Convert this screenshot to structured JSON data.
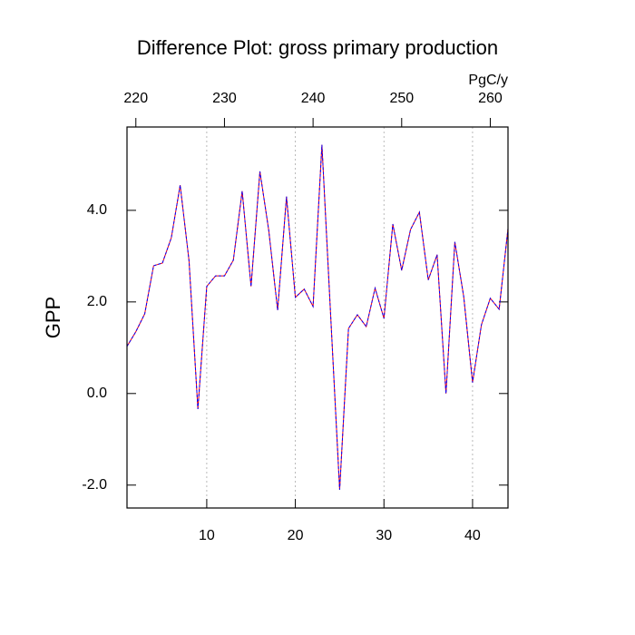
{
  "chart_data": {
    "type": "line",
    "title": "Difference Plot: gross primary production",
    "ylabel": "GPP",
    "x2label": "PgC/y",
    "x": [
      1,
      2,
      3,
      4,
      5,
      6,
      7,
      8,
      9,
      10,
      11,
      12,
      13,
      14,
      15,
      16,
      17,
      18,
      19,
      20,
      21,
      22,
      23,
      24,
      25,
      26,
      27,
      28,
      29,
      30,
      31,
      32,
      33,
      34,
      35,
      36,
      37,
      38,
      39,
      40,
      41,
      42,
      43,
      44
    ],
    "values": [
      1.03,
      1.35,
      1.74,
      2.79,
      2.85,
      3.4,
      4.55,
      2.9,
      -0.34,
      2.34,
      2.57,
      2.57,
      2.91,
      4.42,
      2.34,
      4.85,
      3.56,
      1.82,
      4.3,
      2.1,
      2.28,
      1.9,
      5.43,
      1.65,
      -2.1,
      1.42,
      1.72,
      1.46,
      2.3,
      1.64,
      3.7,
      2.69,
      3.58,
      3.96,
      2.48,
      3.03,
      0.0,
      3.31,
      2.12,
      0.24,
      1.5,
      2.08,
      1.84,
      3.6
    ],
    "color": "#ff0000",
    "overlay_color": "#0000ff",
    "xlim": [
      1,
      44
    ],
    "xticks": [
      10,
      20,
      30,
      40
    ],
    "xtick_color": "#ff0000",
    "x2lim": [
      219,
      262
    ],
    "x2ticks": [
      220,
      230,
      240,
      250,
      260
    ],
    "x2tick_color": "#0000ff",
    "ylim": [
      -2.5,
      5.82
    ],
    "yticks": [
      {
        "value": -2,
        "label": "-2.0"
      },
      {
        "value": 0,
        "label": "0.0"
      },
      {
        "value": 2,
        "label": "2.0"
      },
      {
        "value": 4,
        "label": "4.0"
      }
    ],
    "grid": true
  }
}
